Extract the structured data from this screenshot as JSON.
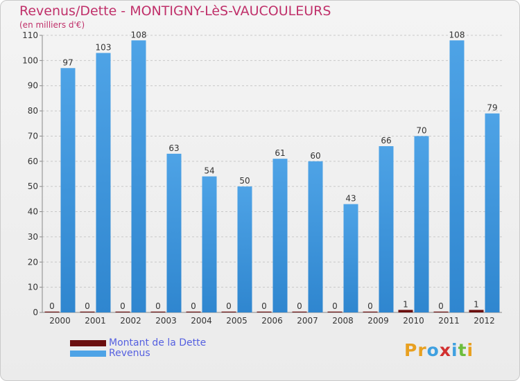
{
  "title": "Revenus/Dette - MONTIGNY-LèS-VAUCOULEURS",
  "subtitle": "(en milliers d'€)",
  "colors": {
    "dette": "#6b0f0f",
    "revenus": "#4ea3e6",
    "revenus_dark": "#2f86cf",
    "title": "#c0306a",
    "legend_text": "#5560e0",
    "axis_text": "#333333"
  },
  "legend": {
    "dette_label": "Montant de la Dette",
    "revenus_label": "Revenus"
  },
  "logo": {
    "letters": [
      "P",
      "r",
      "o",
      "x",
      "i",
      "t",
      "i"
    ],
    "colors": [
      "#e8a020",
      "#e8a020",
      "#3fa0e0",
      "#d23030",
      "#3fa0e0",
      "#6cbd3c",
      "#e8a020"
    ]
  },
  "chart_data": {
    "type": "bar",
    "categories": [
      "2000",
      "2001",
      "2002",
      "2003",
      "2004",
      "2005",
      "2006",
      "2007",
      "2008",
      "2009",
      "2010",
      "2011",
      "2012"
    ],
    "series": [
      {
        "name": "Montant de la Dette",
        "values": [
          0,
          0,
          0,
          0,
          0,
          0,
          0,
          0,
          0,
          0,
          1,
          0,
          1
        ]
      },
      {
        "name": "Revenus",
        "values": [
          97,
          103,
          108,
          63,
          54,
          50,
          61,
          60,
          43,
          66,
          70,
          108,
          79
        ]
      }
    ],
    "ylim": [
      0,
      110
    ],
    "yticks": [
      0,
      10,
      20,
      30,
      40,
      50,
      60,
      70,
      80,
      90,
      100,
      110
    ],
    "grid": true,
    "legend_position": "bottom-left"
  }
}
